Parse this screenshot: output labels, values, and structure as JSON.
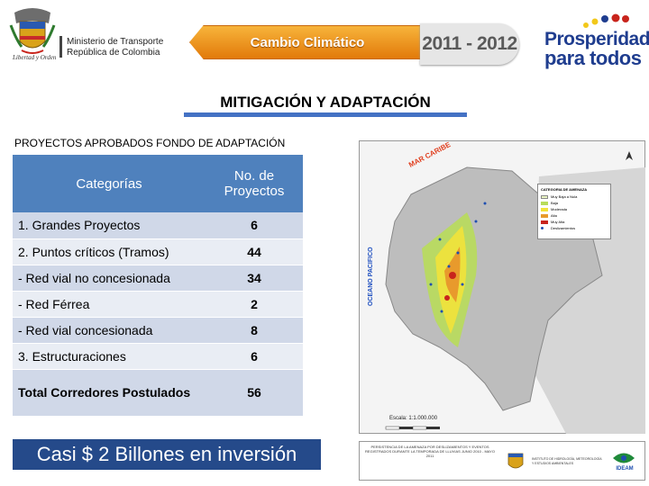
{
  "header": {
    "ministry_line1": "Ministerio de Transporte",
    "ministry_line2": "República de Colombia",
    "crest_caption": "Libertad y Orden",
    "banner": "Cambio Climático",
    "years": "2011 - 2012",
    "prosperity_line1": "Prosperidad",
    "prosperity_line2": "para todos"
  },
  "section": {
    "title": "MITIGACIÓN Y ADAPTACIÓN",
    "table_caption": "PROYECTOS APROBADOS FONDO DE ADAPTACIÓN"
  },
  "table": {
    "headers": [
      "Categorías",
      "No. de Proyectos"
    ],
    "rows": [
      {
        "category": "1. Grandes Proyectos",
        "count": "6"
      },
      {
        "category": "2. Puntos críticos (Tramos)",
        "count": "44"
      },
      {
        "category": "- Red vial no concesionada",
        "count": "34"
      },
      {
        "category": "- Red Férrea",
        "count": "2"
      },
      {
        "category": "- Red vial concesionada",
        "count": "8"
      },
      {
        "category": "3. Estructuraciones",
        "count": "6"
      }
    ],
    "total": {
      "category": "Total Corredores Postulados",
      "count": "56"
    }
  },
  "investment": "Casi $ 2 Billones en inversión",
  "map": {
    "ocean_caribe": "MAR CARIBE",
    "ocean_pacifico": "OCEANO PACIFICO",
    "legend_title": "CATEGORIA DE AMENAZA",
    "legend": [
      {
        "label": "Muy Baja a Nula",
        "color": "#e9f5c4"
      },
      {
        "label": "Baja",
        "color": "#b8dc5a"
      },
      {
        "label": "Moderada",
        "color": "#f2e23a"
      },
      {
        "label": "Alta",
        "color": "#e89a2c"
      },
      {
        "label": "Muy Alta",
        "color": "#c8241c"
      },
      {
        "label": "Deslizamientos",
        "color": "#1f4fb0"
      }
    ],
    "scale": "Escala: 1:1.000.000",
    "footer_text": "PERSISTENCIA DE LA AMENAZA POR DESLIZAMIENTOS Y EVENTOS REGISTRADOS DURANTE LA TEMPORADA DE LLUVIAS JUNIO 2010 - MAYO 2011",
    "footer_right": "INSTITUTO DE HIDROLOGÍA, METEOROLOGÍA Y ESTUDIOS AMBIENTALES",
    "footer_logo": "IDEAM"
  },
  "colors": {
    "banner_orange": "#f0962a",
    "header_blue": "#4f81bd",
    "row_dark": "#d0d8e8",
    "row_light": "#e9edf4",
    "investment_bg": "#254a8a",
    "prosperity_blue": "#1f3d8f"
  }
}
